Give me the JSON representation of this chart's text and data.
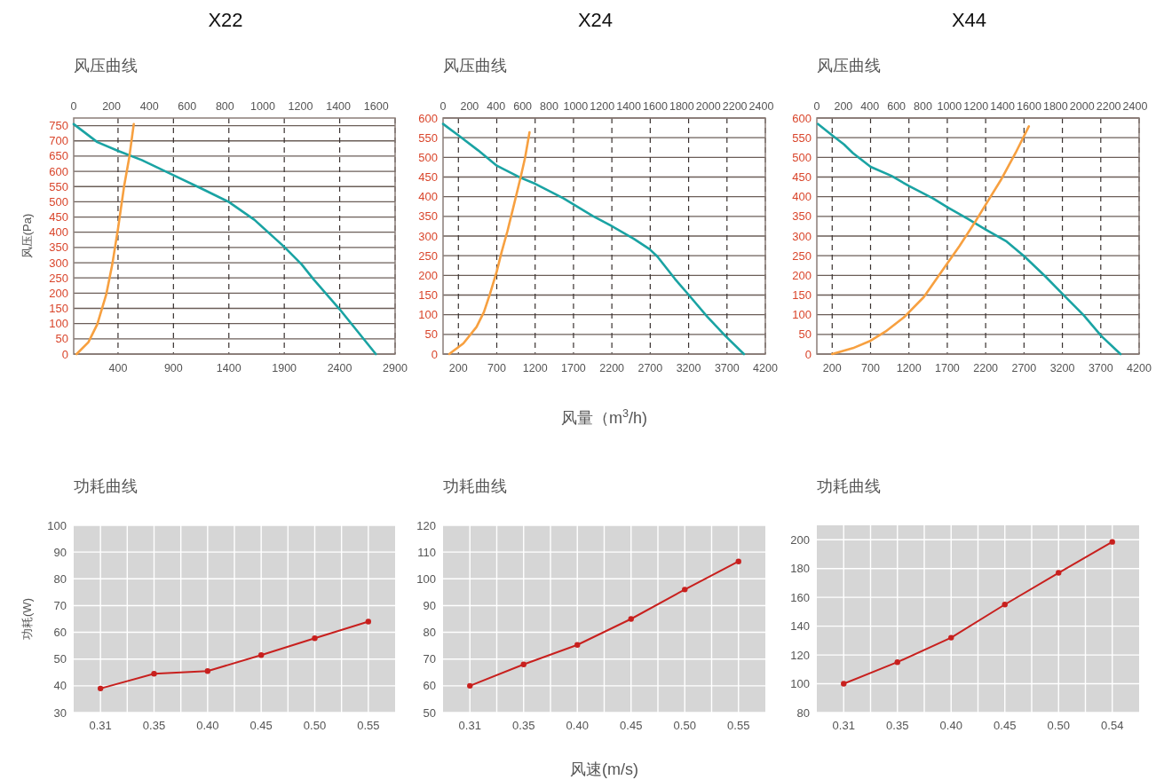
{
  "chart_data": [
    {
      "type": "line",
      "title": "X22",
      "subtitle": "风压曲线",
      "ylabel": "风压(Pa)",
      "xlim": [
        0,
        2900
      ],
      "xticks": [
        400,
        900,
        1400,
        1900,
        2400,
        2900
      ],
      "x2lim": [
        0,
        1700
      ],
      "x2ticks": [
        0,
        200,
        400,
        600,
        800,
        1000,
        1200,
        1400,
        1600
      ],
      "ylim": [
        0,
        775
      ],
      "yticks": [
        0,
        50,
        100,
        150,
        200,
        250,
        300,
        350,
        400,
        450,
        500,
        550,
        600,
        650,
        700,
        750
      ],
      "grid": true,
      "line_style": "solid",
      "series": [
        {
          "color": "#1aa3a3",
          "x": [
            0,
            213,
            400,
            614,
            895,
            1149,
            1397,
            1630,
            1897,
            2058,
            2165,
            2400,
            2726
          ],
          "values": [
            755,
            696,
            667,
            637,
            588,
            544,
            500,
            441,
            353,
            294,
            245,
            147,
            0
          ]
        },
        {
          "color": "#f7a040",
          "x": [
            26,
            133,
            213,
            294,
            348,
            400,
            454,
            502,
            542
          ],
          "values": [
            0,
            39,
            98,
            196,
            294,
            412,
            549,
            647,
            755
          ]
        }
      ]
    },
    {
      "type": "line",
      "title": "X24",
      "subtitle": "风压曲线",
      "xlabel": "风量（m$^{3}$/h)",
      "xlim": [
        0,
        4200
      ],
      "xticks": [
        200,
        700,
        1200,
        1700,
        2200,
        2700,
        3200,
        3700,
        4200
      ],
      "x2lim": [
        0,
        2430
      ],
      "x2ticks": [
        0,
        200,
        400,
        600,
        800,
        1000,
        1200,
        1400,
        1600,
        1800,
        2000,
        2200,
        2400
      ],
      "ylim": [
        0,
        600
      ],
      "yticks": [
        0,
        50,
        100,
        150,
        200,
        250,
        300,
        350,
        400,
        450,
        500,
        550,
        600
      ],
      "grid": true,
      "line_style": "solid",
      "series": [
        {
          "color": "#1aa3a3",
          "x": [
            0,
            200,
            456,
            700,
            801,
            1012,
            1200,
            1567,
            1950,
            2191,
            2486,
            2689,
            2792,
            3022,
            3186,
            3443,
            3680,
            3921
          ],
          "values": [
            585,
            556,
            518,
            479,
            469,
            448,
            433,
            396,
            351,
            326,
            293,
            267,
            248,
            191,
            154,
            95,
            46,
            0
          ]
        },
        {
          "color": "#f7a040",
          "x": [
            81,
            265,
            437,
            533,
            610,
            700,
            763,
            840,
            916,
            1012,
            1069,
            1127
          ],
          "values": [
            0,
            27,
            69,
            107,
            152,
            210,
            259,
            313,
            373,
            450,
            499,
            564
          ]
        }
      ]
    },
    {
      "type": "line",
      "title": "X44",
      "subtitle": "风压曲线",
      "xlim": [
        0,
        4200
      ],
      "xticks": [
        200,
        700,
        1200,
        1700,
        2200,
        2700,
        3200,
        3700,
        4200
      ],
      "x2lim": [
        0,
        2430
      ],
      "x2ticks": [
        0,
        200,
        400,
        600,
        800,
        1000,
        1200,
        1400,
        1600,
        1800,
        2000,
        2200,
        2400
      ],
      "ylim": [
        0,
        600
      ],
      "yticks": [
        0,
        50,
        100,
        150,
        200,
        250,
        300,
        350,
        400,
        450,
        500,
        550,
        600
      ],
      "grid": true,
      "line_style": "solid",
      "series": [
        {
          "color": "#1aa3a3",
          "x": [
            15,
            200,
            354,
            470,
            701,
            971,
            1202,
            1510,
            1703,
            1973,
            2204,
            2474,
            2705,
            2975,
            3206,
            3476,
            3707,
            3957
          ],
          "values": [
            585,
            556,
            533,
            511,
            476,
            453,
            427,
            396,
            373,
            343,
            316,
            286,
            248,
            198,
            152,
            99,
            46,
            0
          ]
        },
        {
          "color": "#f7a040",
          "x": [
            200,
            470,
            701,
            894,
            1144,
            1394,
            1626,
            1857,
            2050,
            2204,
            2397,
            2589,
            2763
          ],
          "values": [
            0,
            15,
            34,
            57,
            95,
            145,
            210,
            274,
            332,
            381,
            442,
            511,
            579
          ]
        }
      ]
    },
    {
      "type": "line",
      "title": "功耗曲线",
      "ylabel": "功耗(W)",
      "categories": [
        "0.31",
        "0.35",
        "0.40",
        "0.45",
        "0.50",
        "0.55"
      ],
      "ylim": [
        30,
        100
      ],
      "yticks": [
        30,
        40,
        50,
        60,
        70,
        80,
        90,
        100
      ],
      "grid": true,
      "marker": "circle",
      "line_style": "solid",
      "series": [
        {
          "color": "#c8201e",
          "values": [
            39,
            44.5,
            45.5,
            51.5,
            57.8,
            64
          ]
        }
      ]
    },
    {
      "type": "line",
      "title": "功耗曲线",
      "xlabel": "风速(m/s)",
      "categories": [
        "0.31",
        "0.35",
        "0.40",
        "0.45",
        "0.50",
        "0.55"
      ],
      "ylim": [
        50,
        120
      ],
      "yticks": [
        50,
        60,
        70,
        80,
        90,
        100,
        110,
        120
      ],
      "grid": true,
      "marker": "circle",
      "line_style": "solid",
      "series": [
        {
          "color": "#c8201e",
          "values": [
            60,
            68,
            75.3,
            85,
            96,
            106.5
          ]
        }
      ]
    },
    {
      "type": "line",
      "title": "功耗曲线",
      "categories": [
        "0.31",
        "0.35",
        "0.40",
        "0.45",
        "0.50",
        "0.54"
      ],
      "ylim": [
        80,
        210
      ],
      "yticks": [
        80,
        100,
        120,
        140,
        160,
        180,
        200
      ],
      "grid": true,
      "marker": "circle",
      "line_style": "solid",
      "series": [
        {
          "color": "#c8201e",
          "values": [
            100,
            115,
            132,
            155,
            177,
            198.5
          ]
        }
      ]
    }
  ]
}
